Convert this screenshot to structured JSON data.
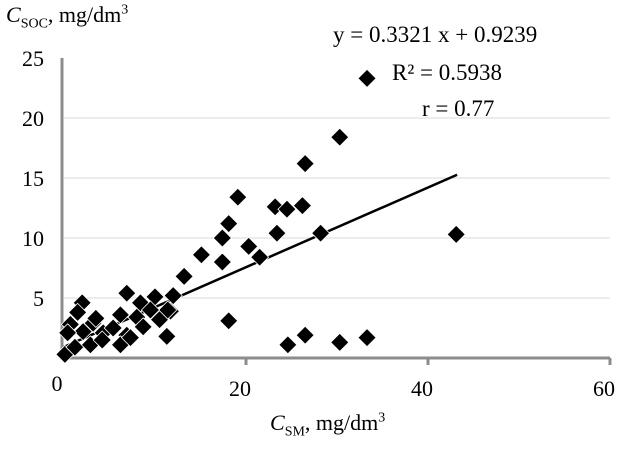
{
  "chart_data": {
    "type": "scatter",
    "xlabel": {
      "var": "C",
      "sub": "SM",
      "unit": ", mg/dm",
      "sup": "3"
    },
    "ylabel": {
      "var": "C",
      "sub": "SOC",
      "unit": ", mg/dm",
      "sup": "3"
    },
    "xlim": [
      0,
      60
    ],
    "ylim": [
      0,
      25
    ],
    "xticks": [
      "20",
      "40",
      "60"
    ],
    "yticks": [
      "5",
      "10",
      "15",
      "20",
      "25"
    ],
    "origin_label": "0",
    "grid": "horizontal",
    "marker": "diamond",
    "colors": {
      "points": "#000000",
      "axis": "#8c8c8c",
      "grid": "#d9d9d9"
    },
    "trendline": {
      "slope": 0.3321,
      "intercept": 0.9239,
      "x_range": [
        0,
        43.2
      ]
    },
    "annotations": {
      "equation": "y = 0.3321 x + 0.9239",
      "r2": "R² = 0.5938",
      "r": "r = 0.77"
    },
    "points": [
      [
        33.3,
        23.3
      ],
      [
        30.3,
        18.4
      ],
      [
        26.5,
        16.2
      ],
      [
        19.1,
        13.4
      ],
      [
        23.2,
        12.6
      ],
      [
        24.5,
        12.4
      ],
      [
        26.2,
        12.7
      ],
      [
        18.1,
        11.2
      ],
      [
        17.4,
        10.0
      ],
      [
        23.4,
        10.4
      ],
      [
        28.2,
        10.4
      ],
      [
        43.1,
        10.3
      ],
      [
        20.3,
        9.3
      ],
      [
        21.5,
        8.4
      ],
      [
        15.1,
        8.6
      ],
      [
        17.4,
        8.0
      ],
      [
        13.2,
        6.8
      ],
      [
        12.0,
        5.2
      ],
      [
        11.7,
        3.9
      ],
      [
        18.1,
        3.1
      ],
      [
        11.3,
        1.8
      ],
      [
        24.6,
        1.1
      ],
      [
        26.5,
        1.9
      ],
      [
        30.3,
        1.3
      ],
      [
        33.3,
        1.7
      ],
      [
        2.0,
        4.6
      ],
      [
        6.9,
        5.4
      ],
      [
        10.0,
        5.1
      ],
      [
        8.4,
        4.6
      ],
      [
        6.2,
        3.6
      ],
      [
        0.7,
        2.8
      ],
      [
        1.5,
        3.8
      ],
      [
        3.2,
        2.9
      ],
      [
        2.1,
        2.2
      ],
      [
        4.3,
        2.1
      ],
      [
        5.4,
        2.5
      ],
      [
        6.9,
        1.9
      ],
      [
        8.0,
        3.4
      ],
      [
        8.7,
        2.6
      ],
      [
        10.5,
        3.2
      ],
      [
        11.4,
        4.0
      ],
      [
        0.1,
        0.3
      ],
      [
        1.2,
        0.9
      ],
      [
        2.9,
        1.1
      ],
      [
        6.2,
        1.1
      ],
      [
        7.3,
        1.7
      ],
      [
        4.2,
        1.5
      ],
      [
        0.4,
        2.1
      ],
      [
        9.5,
        4.0
      ],
      [
        3.5,
        3.3
      ]
    ]
  }
}
